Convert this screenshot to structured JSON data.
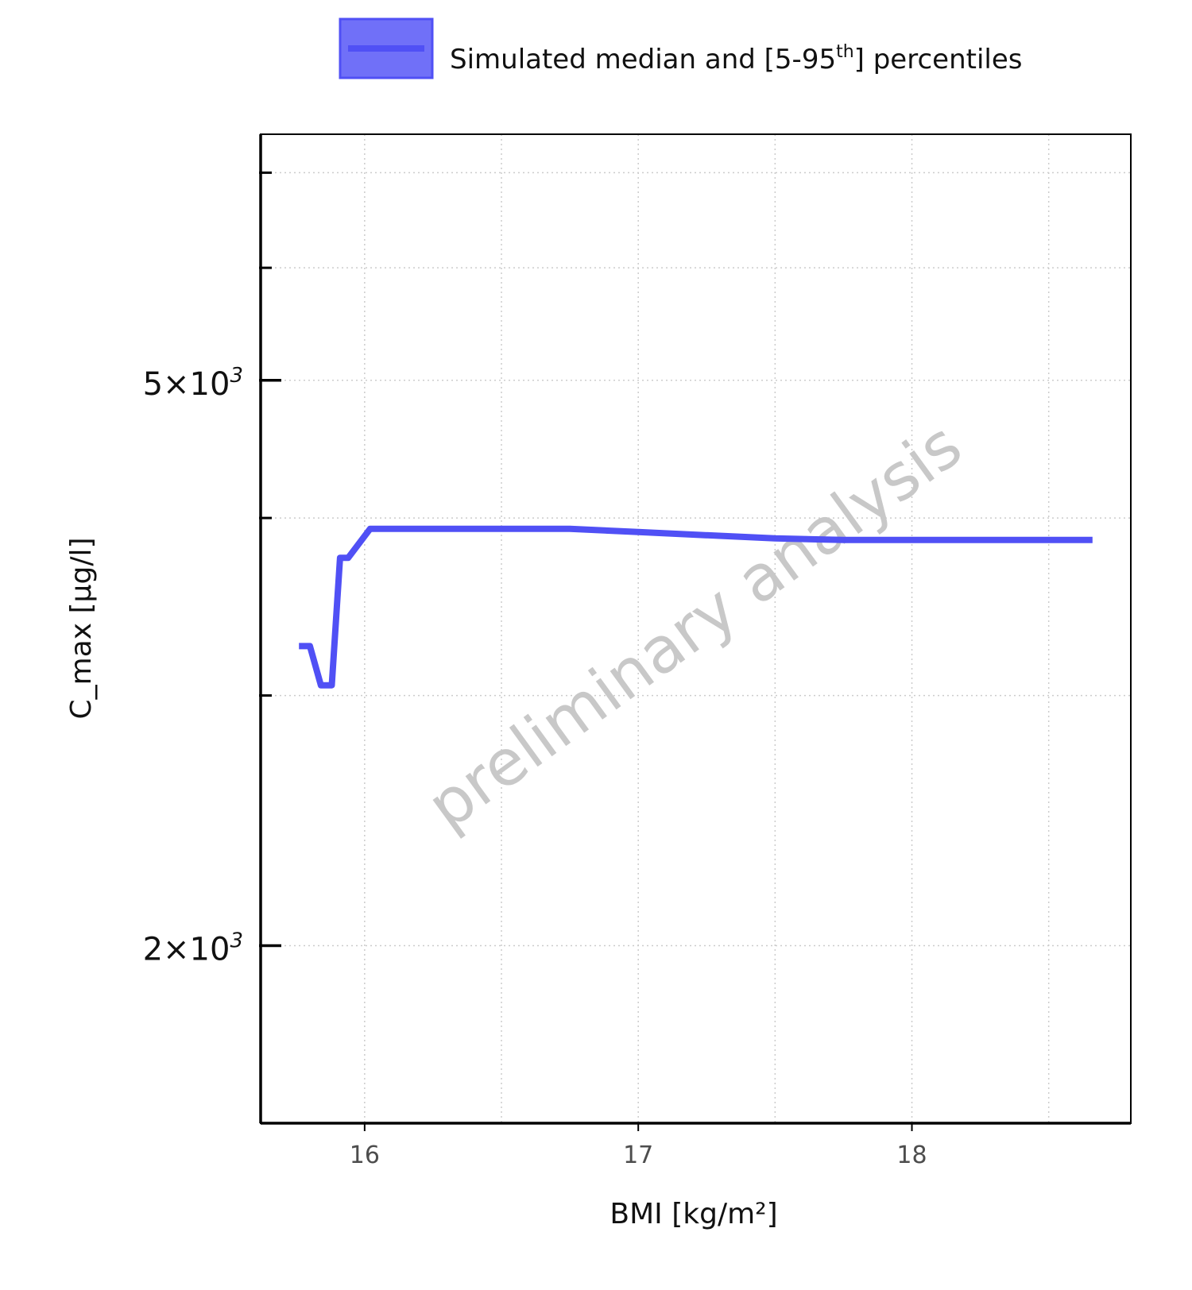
{
  "chart_data": {
    "type": "line",
    "title": "",
    "xlabel": "BMI [kg/m²]",
    "ylabel": "C_max [µg/l]",
    "y_scale": "log",
    "xlim": [
      15.62,
      18.8
    ],
    "ylim": [
      1500,
      7450
    ],
    "x_ticks": [
      16,
      17,
      18
    ],
    "x_tick_labels": [
      "16",
      "17",
      "18"
    ],
    "y_ticks": [
      {
        "value": 2000,
        "mantissa": "2",
        "exp": "3"
      },
      {
        "value": 5000,
        "mantissa": "5",
        "exp": "3"
      }
    ],
    "y_minor_ticks": [
      3000,
      4000,
      6000,
      7000
    ],
    "x_minor_grid": [
      16.5,
      17.5,
      18.5
    ],
    "grid": true,
    "legend": {
      "position": "top",
      "text": "Simulated median and [5-95",
      "superscript": "th",
      "text_end": "] percentiles"
    },
    "watermark": "preliminary analysis",
    "colors": {
      "series": "#5050f5",
      "band": "#7070f8",
      "watermark": "#c8c8c8",
      "grid": "#cccccc"
    },
    "series": [
      {
        "name": "Simulated median and [5-95th] percentiles",
        "x": [
          15.76,
          15.8,
          15.84,
          15.88,
          15.91,
          15.94,
          16.02,
          16.5,
          16.75,
          17.0,
          17.5,
          17.75,
          18.0,
          18.5,
          18.66
        ],
        "y": [
          3250,
          3250,
          3050,
          3050,
          3750,
          3750,
          3930,
          3930,
          3930,
          3910,
          3870,
          3860,
          3860,
          3860,
          3860
        ]
      }
    ]
  }
}
